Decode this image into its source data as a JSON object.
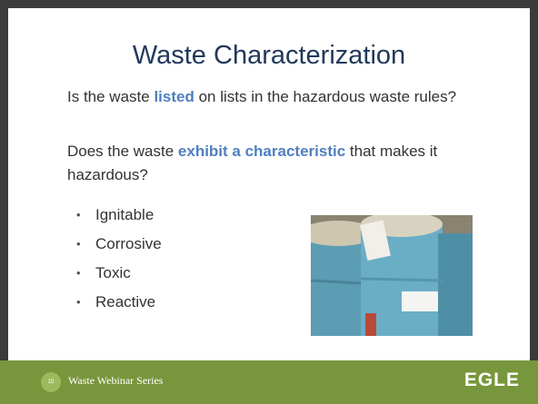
{
  "title": "Waste Characterization",
  "paragraphs": [
    {
      "before": "Is the waste ",
      "highlight": "listed",
      "after": " on lists in the hazardous waste rules?"
    },
    {
      "before": "Does the waste ",
      "highlight": "exhibit a characteristic",
      "after": " that makes it hazardous?"
    }
  ],
  "bullets": [
    "Ignitable",
    "Corrosive",
    "Toxic",
    "Reactive"
  ],
  "footer": {
    "slide_number": "15",
    "series": "Waste Webinar Series",
    "logo": "EGLE"
  }
}
